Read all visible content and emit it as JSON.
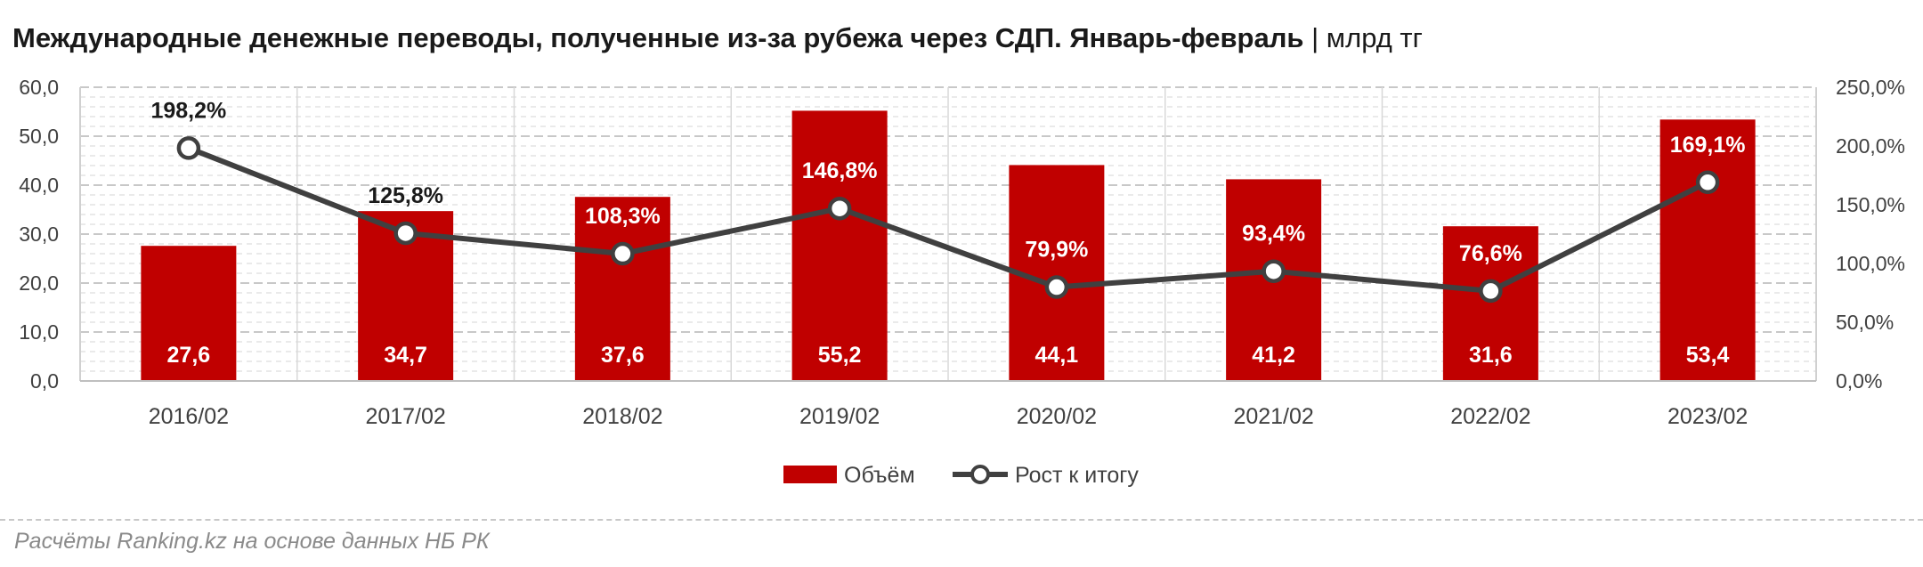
{
  "title": "Международные денежные переводы, полученные из-за рубежа через СДП. Январь-февраль",
  "title_separator": "|",
  "unit": "млрд тг",
  "source": "Расчёты Ranking.kz на основе данных НБ РК",
  "colors": {
    "bar": "#c00000",
    "line": "#404040",
    "marker_fill": "#ffffff"
  },
  "chart_data": {
    "type": "bar+line",
    "categories": [
      "2016/02",
      "2017/02",
      "2018/02",
      "2019/02",
      "2020/02",
      "2021/02",
      "2022/02",
      "2023/02"
    ],
    "series": [
      {
        "name": "Объём",
        "type": "bar",
        "axis": "left",
        "values": [
          27.6,
          34.7,
          37.6,
          55.2,
          44.1,
          41.2,
          31.6,
          53.4
        ],
        "labels": [
          "27,6",
          "34,7",
          "37,6",
          "55,2",
          "44,1",
          "41,2",
          "31,6",
          "53,4"
        ]
      },
      {
        "name": "Рост к итогу",
        "type": "line",
        "axis": "right",
        "values": [
          198.2,
          125.8,
          108.3,
          146.8,
          79.9,
          93.4,
          76.6,
          169.1
        ],
        "labels": [
          "198,2%",
          "125,8%",
          "108,3%",
          "146,8%",
          "79,9%",
          "93,4%",
          "76,6%",
          "169,1%"
        ]
      }
    ],
    "y_left": {
      "ylim": [
        0,
        60
      ],
      "ticks": [
        "0,0",
        "10,0",
        "20,0",
        "30,0",
        "40,0",
        "50,0",
        "60,0"
      ]
    },
    "y_right": {
      "ylim": [
        0,
        250
      ],
      "ticks": [
        "0,0%",
        "50,0%",
        "100,0%",
        "150,0%",
        "200,0%",
        "250,0%"
      ]
    },
    "grid": true,
    "legend_position": "bottom"
  }
}
